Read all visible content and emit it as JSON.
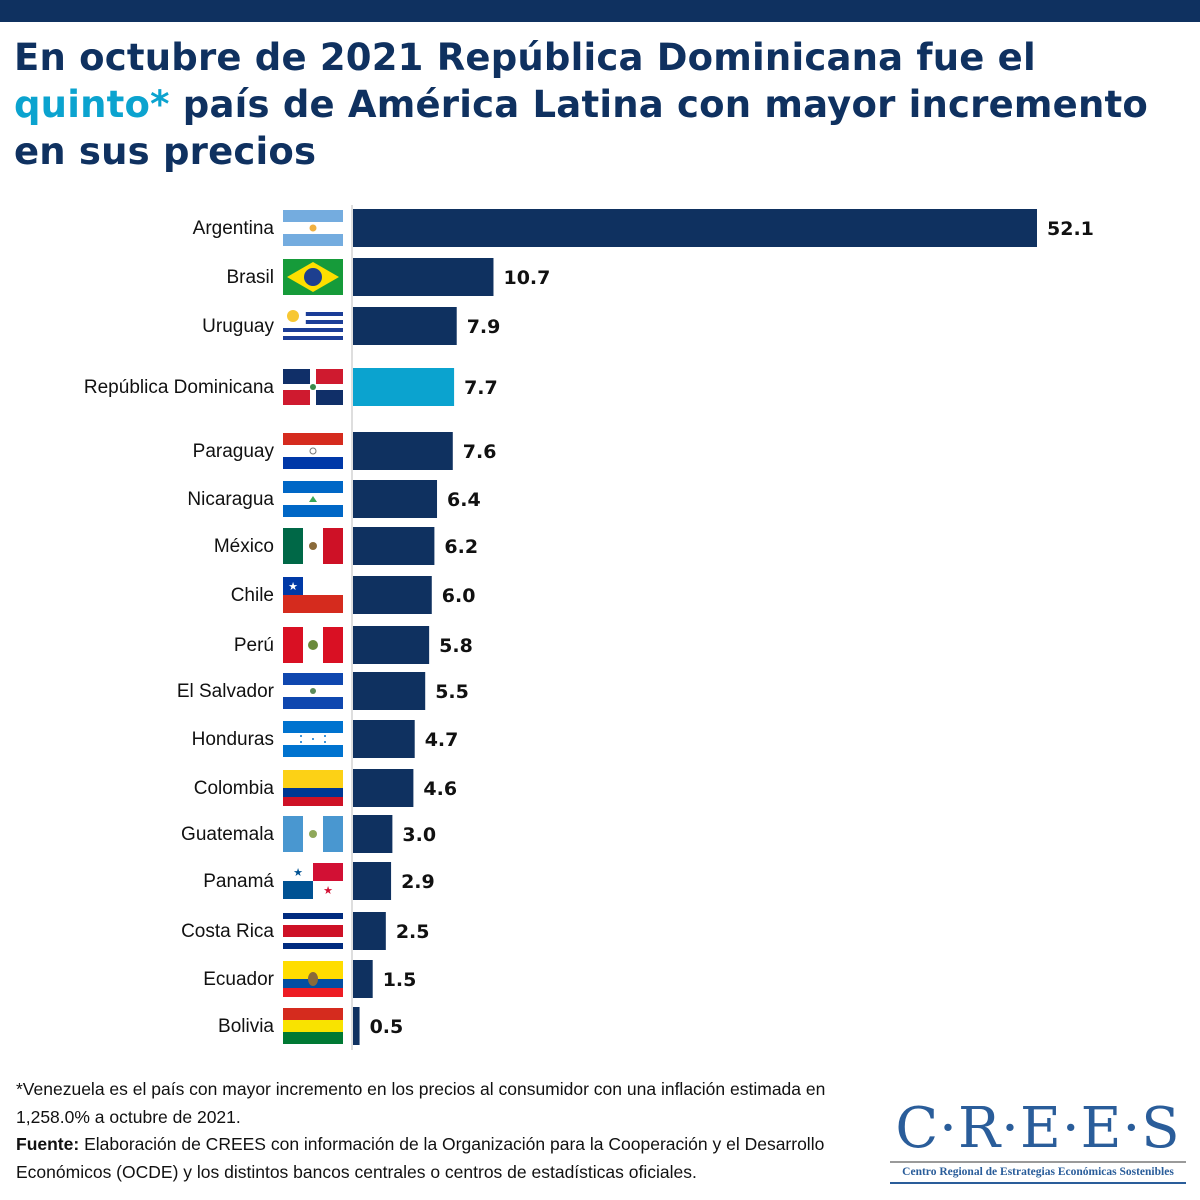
{
  "header": {
    "title_line1": "En octubre de 2021 República Dominicana fue el",
    "title_highlight": "quinto*",
    "title_line2_rest": " país de América Latina con mayor incremento",
    "title_line3": "en sus precios"
  },
  "colors": {
    "bar": "#0f3160",
    "highlight_bar": "#0ba3cf",
    "title": "#0f3160",
    "title_highlight": "#0ba3cf",
    "top_band": "#0f3160"
  },
  "chart_data": {
    "type": "bar",
    "orientation": "horizontal",
    "title": "En octubre de 2021 República Dominicana fue el quinto* país de América Latina con mayor incremento en sus precios",
    "xlabel": "",
    "ylabel": "",
    "xlim": [
      0,
      52.1
    ],
    "grid": false,
    "legend": "none",
    "categories": [
      "Argentina",
      "Brasil",
      "Uruguay",
      "República Dominicana",
      "Paraguay",
      "Nicaragua",
      "México",
      "Chile",
      "Perú",
      "El Salvador",
      "Honduras",
      "Colombia",
      "Guatemala",
      "Panamá",
      "Costa Rica",
      "Ecuador",
      "Bolivia"
    ],
    "values": [
      52.1,
      10.7,
      7.9,
      7.7,
      7.6,
      6.4,
      6.2,
      6.0,
      5.8,
      5.5,
      4.7,
      4.6,
      3.0,
      2.9,
      2.5,
      1.5,
      0.5
    ],
    "value_labels": [
      "52.1",
      "10.7",
      "7.9",
      "7.7",
      "7.6",
      "6.4",
      "6.2",
      "6.0",
      "5.8",
      "5.5",
      "4.7",
      "4.6",
      "3.0",
      "2.9",
      "2.5",
      "1.5",
      "0.5"
    ],
    "highlighted": "República Dominicana",
    "flags": [
      "argentina-flag",
      "brazil-flag",
      "uruguay-flag",
      "dominican-republic-flag",
      "paraguay-flag",
      "nicaragua-flag",
      "mexico-flag",
      "chile-flag",
      "peru-flag",
      "el-salvador-flag",
      "honduras-flag",
      "colombia-flag",
      "guatemala-flag",
      "panama-flag",
      "costa-rica-flag",
      "ecuador-flag",
      "bolivia-flag"
    ]
  },
  "footnote": {
    "venezuela_note": "*Venezuela es el país con mayor incremento en los precios al consumidor con una inflación estimada en 1,258.0% a octubre de 2021.",
    "source_label": "Fuente:",
    "source_text": " Elaboración de CREES con información de la Organización para la Cooperación y el Desarrollo Económicos (OCDE) y los distintos bancos centrales o centros de estadísticas oficiales."
  },
  "logo": {
    "wordmark": "C·R·E·E·S",
    "subtitle": "Centro Regional de Estrategias Económicas Sostenibles"
  }
}
